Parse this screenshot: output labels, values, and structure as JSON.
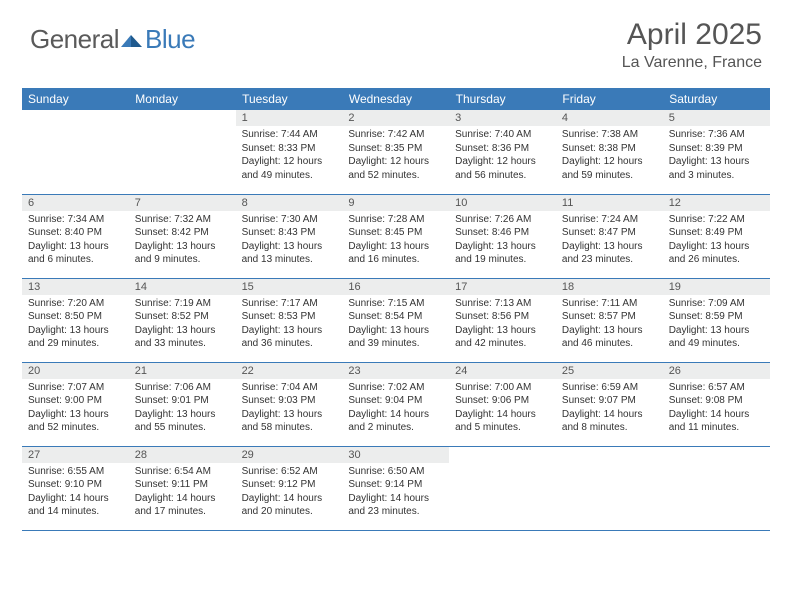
{
  "brand": {
    "name_a": "General",
    "name_b": "Blue"
  },
  "title": {
    "month": "April 2025",
    "location": "La Varenne, France"
  },
  "colors": {
    "accent": "#3a7ab8",
    "daybar": "#eceded",
    "text": "#333333",
    "header_text": "#555555"
  },
  "dayNames": [
    "Sunday",
    "Monday",
    "Tuesday",
    "Wednesday",
    "Thursday",
    "Friday",
    "Saturday"
  ],
  "layout": {
    "firstDayOffset": 2,
    "daysInMonth": 30
  },
  "days": {
    "1": {
      "sunrise": "7:44 AM",
      "sunset": "8:33 PM",
      "daylight": "12 hours and 49 minutes."
    },
    "2": {
      "sunrise": "7:42 AM",
      "sunset": "8:35 PM",
      "daylight": "12 hours and 52 minutes."
    },
    "3": {
      "sunrise": "7:40 AM",
      "sunset": "8:36 PM",
      "daylight": "12 hours and 56 minutes."
    },
    "4": {
      "sunrise": "7:38 AM",
      "sunset": "8:38 PM",
      "daylight": "12 hours and 59 minutes."
    },
    "5": {
      "sunrise": "7:36 AM",
      "sunset": "8:39 PM",
      "daylight": "13 hours and 3 minutes."
    },
    "6": {
      "sunrise": "7:34 AM",
      "sunset": "8:40 PM",
      "daylight": "13 hours and 6 minutes."
    },
    "7": {
      "sunrise": "7:32 AM",
      "sunset": "8:42 PM",
      "daylight": "13 hours and 9 minutes."
    },
    "8": {
      "sunrise": "7:30 AM",
      "sunset": "8:43 PM",
      "daylight": "13 hours and 13 minutes."
    },
    "9": {
      "sunrise": "7:28 AM",
      "sunset": "8:45 PM",
      "daylight": "13 hours and 16 minutes."
    },
    "10": {
      "sunrise": "7:26 AM",
      "sunset": "8:46 PM",
      "daylight": "13 hours and 19 minutes."
    },
    "11": {
      "sunrise": "7:24 AM",
      "sunset": "8:47 PM",
      "daylight": "13 hours and 23 minutes."
    },
    "12": {
      "sunrise": "7:22 AM",
      "sunset": "8:49 PM",
      "daylight": "13 hours and 26 minutes."
    },
    "13": {
      "sunrise": "7:20 AM",
      "sunset": "8:50 PM",
      "daylight": "13 hours and 29 minutes."
    },
    "14": {
      "sunrise": "7:19 AM",
      "sunset": "8:52 PM",
      "daylight": "13 hours and 33 minutes."
    },
    "15": {
      "sunrise": "7:17 AM",
      "sunset": "8:53 PM",
      "daylight": "13 hours and 36 minutes."
    },
    "16": {
      "sunrise": "7:15 AM",
      "sunset": "8:54 PM",
      "daylight": "13 hours and 39 minutes."
    },
    "17": {
      "sunrise": "7:13 AM",
      "sunset": "8:56 PM",
      "daylight": "13 hours and 42 minutes."
    },
    "18": {
      "sunrise": "7:11 AM",
      "sunset": "8:57 PM",
      "daylight": "13 hours and 46 minutes."
    },
    "19": {
      "sunrise": "7:09 AM",
      "sunset": "8:59 PM",
      "daylight": "13 hours and 49 minutes."
    },
    "20": {
      "sunrise": "7:07 AM",
      "sunset": "9:00 PM",
      "daylight": "13 hours and 52 minutes."
    },
    "21": {
      "sunrise": "7:06 AM",
      "sunset": "9:01 PM",
      "daylight": "13 hours and 55 minutes."
    },
    "22": {
      "sunrise": "7:04 AM",
      "sunset": "9:03 PM",
      "daylight": "13 hours and 58 minutes."
    },
    "23": {
      "sunrise": "7:02 AM",
      "sunset": "9:04 PM",
      "daylight": "14 hours and 2 minutes."
    },
    "24": {
      "sunrise": "7:00 AM",
      "sunset": "9:06 PM",
      "daylight": "14 hours and 5 minutes."
    },
    "25": {
      "sunrise": "6:59 AM",
      "sunset": "9:07 PM",
      "daylight": "14 hours and 8 minutes."
    },
    "26": {
      "sunrise": "6:57 AM",
      "sunset": "9:08 PM",
      "daylight": "14 hours and 11 minutes."
    },
    "27": {
      "sunrise": "6:55 AM",
      "sunset": "9:10 PM",
      "daylight": "14 hours and 14 minutes."
    },
    "28": {
      "sunrise": "6:54 AM",
      "sunset": "9:11 PM",
      "daylight": "14 hours and 17 minutes."
    },
    "29": {
      "sunrise": "6:52 AM",
      "sunset": "9:12 PM",
      "daylight": "14 hours and 20 minutes."
    },
    "30": {
      "sunrise": "6:50 AM",
      "sunset": "9:14 PM",
      "daylight": "14 hours and 23 minutes."
    }
  },
  "labels": {
    "sunrise": "Sunrise:",
    "sunset": "Sunset:",
    "daylight": "Daylight:"
  }
}
